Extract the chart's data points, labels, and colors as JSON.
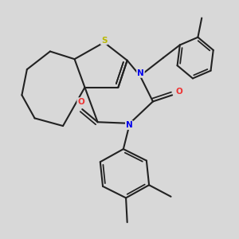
{
  "bg_color": "#d8d8d8",
  "bond_color": "#222222",
  "S_color": "#b8b800",
  "N_color": "#0000ee",
  "O_color": "#ee3333",
  "lw": 1.5,
  "xlim": [
    0,
    10
  ],
  "ylim": [
    0,
    10
  ]
}
